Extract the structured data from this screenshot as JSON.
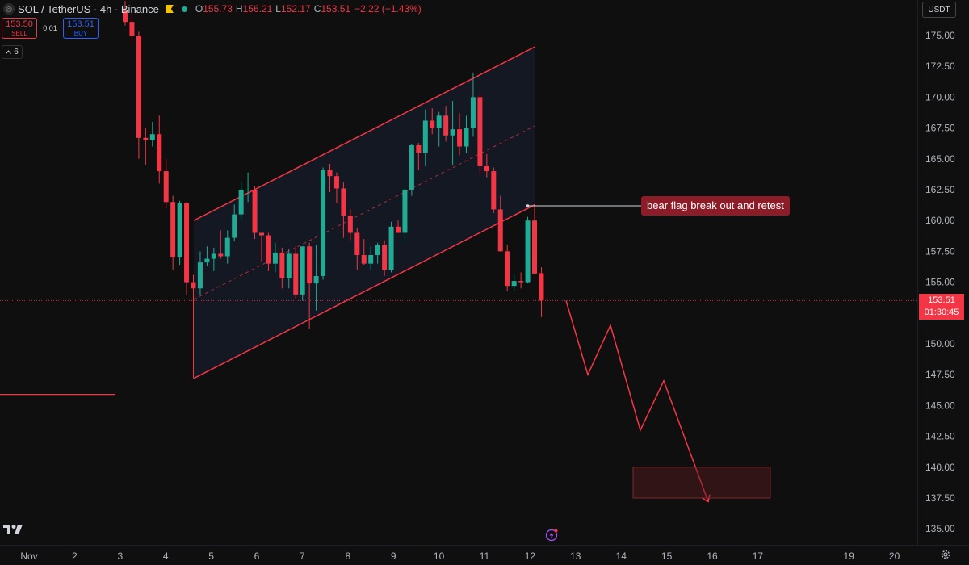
{
  "header": {
    "symbol_title": "SOL / TetherUS · 4h · Binance",
    "ohlc": [
      {
        "key": "O",
        "value": "155.73"
      },
      {
        "key": "H",
        "value": "156.21"
      },
      {
        "key": "L",
        "value": "152.17"
      },
      {
        "key": "C",
        "value": "153.51"
      }
    ],
    "change": "−2.22 (−1.43%)"
  },
  "trade": {
    "sell_price": "153.50",
    "sell_label": "SELL",
    "spread": "0.01",
    "buy_price": "153.51",
    "buy_label": "BUY"
  },
  "indicator_count": "6",
  "currency_button": "USDT",
  "current_price": {
    "value": "153.51",
    "countdown": "01:30:45"
  },
  "annotation": "bear flag break out and retest",
  "colors": {
    "up": "#22ab94",
    "down": "#f23645",
    "background": "#0f0f0f",
    "drawing": "#f23645"
  },
  "icons": [
    "tradingview-logo-icon",
    "settings-gear-icon",
    "lightning-bolt-icon",
    "chevron-down-icon",
    "symbol-logo-icon"
  ],
  "chart_data": {
    "type": "candlestick",
    "interval": "4h",
    "y_ticks": [
      135.0,
      137.5,
      140.0,
      142.5,
      145.0,
      147.5,
      150.0,
      152.5,
      155.0,
      157.5,
      160.0,
      162.5,
      165.0,
      167.5,
      170.0,
      172.5,
      175.0
    ],
    "y_tick_labels": [
      "135.00",
      "137.50",
      "140.00",
      "142.50",
      "145.00",
      "147.50",
      "150.00",
      "152.50",
      "155.00",
      "157.50",
      "160.00",
      "162.50",
      "165.00",
      "167.50",
      "170.00",
      "172.50",
      "175.00"
    ],
    "x_tick_labels": [
      "Nov",
      "2",
      "3",
      "4",
      "5",
      "6",
      "7",
      "8",
      "9",
      "10",
      "11",
      "12",
      "13",
      "14",
      "15",
      "16",
      "17",
      "19",
      "20"
    ],
    "candles": [
      [
        177.0,
        177.8,
        175.8,
        176.1
      ],
      [
        176.1,
        176.8,
        174.4,
        175.0
      ],
      [
        175.0,
        175.3,
        165.0,
        166.7
      ],
      [
        166.7,
        167.5,
        164.5,
        166.5
      ],
      [
        166.5,
        168.0,
        166.0,
        167.0
      ],
      [
        167.0,
        168.5,
        163.0,
        164.0
      ],
      [
        164.0,
        165.0,
        161.0,
        161.5
      ],
      [
        161.5,
        162.0,
        156.0,
        157.0
      ],
      [
        157.0,
        161.6,
        156.4,
        161.4
      ],
      [
        161.4,
        161.5,
        154.0,
        155.0
      ],
      [
        155.0,
        155.6,
        147.2,
        154.5
      ],
      [
        154.5,
        157.5,
        154.0,
        156.6
      ],
      [
        156.6,
        157.9,
        156.3,
        156.9
      ],
      [
        156.9,
        157.8,
        155.9,
        157.3
      ],
      [
        157.3,
        159.2,
        156.9,
        157.1
      ],
      [
        157.1,
        159.2,
        156.5,
        158.6
      ],
      [
        158.6,
        161.3,
        158.3,
        160.5
      ],
      [
        160.5,
        163.1,
        160.0,
        162.5
      ],
      [
        162.5,
        163.9,
        161.5,
        162.5
      ],
      [
        162.5,
        162.8,
        158.5,
        159.0
      ],
      [
        159.0,
        159.0,
        156.7,
        158.8
      ],
      [
        158.8,
        159.0,
        155.9,
        156.5
      ],
      [
        156.5,
        158.2,
        155.8,
        157.4
      ],
      [
        157.4,
        157.8,
        154.5,
        155.3
      ],
      [
        155.3,
        157.7,
        154.5,
        157.3
      ],
      [
        157.3,
        157.9,
        153.6,
        154.0
      ],
      [
        154.0,
        157.9,
        153.5,
        157.9
      ],
      [
        157.9,
        158.2,
        151.2,
        154.9
      ],
      [
        154.9,
        158.0,
        152.7,
        155.5
      ],
      [
        155.5,
        164.3,
        155.2,
        164.1
      ],
      [
        164.1,
        164.6,
        162.3,
        163.6
      ],
      [
        163.6,
        163.9,
        161.4,
        162.6
      ],
      [
        162.6,
        163.1,
        158.6,
        160.4
      ],
      [
        160.4,
        160.9,
        158.4,
        159.0
      ],
      [
        159.0,
        159.4,
        156.0,
        157.2
      ],
      [
        157.2,
        158.5,
        156.4,
        156.5
      ],
      [
        156.5,
        157.9,
        156.0,
        157.2
      ],
      [
        157.2,
        158.2,
        156.5,
        158.0
      ],
      [
        158.0,
        158.4,
        155.5,
        156.0
      ],
      [
        156.0,
        159.9,
        155.8,
        159.5
      ],
      [
        159.5,
        160.0,
        159.0,
        159.0
      ],
      [
        159.0,
        162.8,
        158.2,
        162.5
      ],
      [
        162.5,
        166.2,
        162.0,
        166.1
      ],
      [
        166.1,
        166.3,
        164.1,
        165.5
      ],
      [
        165.5,
        169.0,
        164.4,
        168.1
      ],
      [
        168.1,
        169.1,
        167.0,
        167.5
      ],
      [
        167.5,
        168.8,
        166.0,
        168.5
      ],
      [
        168.5,
        169.3,
        166.4,
        166.9
      ],
      [
        166.9,
        169.7,
        164.5,
        167.4
      ],
      [
        167.4,
        168.7,
        165.3,
        166.0
      ],
      [
        166.0,
        168.5,
        165.5,
        167.5
      ],
      [
        167.5,
        172.0,
        166.8,
        170.0
      ],
      [
        170.0,
        170.3,
        163.8,
        164.4
      ],
      [
        164.4,
        165.4,
        163.5,
        164.0
      ],
      [
        164.0,
        164.3,
        160.6,
        160.9
      ],
      [
        160.9,
        162.0,
        157.5,
        157.5
      ],
      [
        157.5,
        158.0,
        154.3,
        154.7
      ],
      [
        154.7,
        155.6,
        154.3,
        155.1
      ],
      [
        155.1,
        155.8,
        154.5,
        155.0
      ],
      [
        155.0,
        160.3,
        154.9,
        160.0
      ],
      [
        160.0,
        161.2,
        155.6,
        155.7
      ],
      [
        155.73,
        156.21,
        152.17,
        153.51
      ]
    ],
    "channel": {
      "upper": [
        [
          160.0,
          169.5
        ],
        [
          174.1,
          169.5
        ]
      ],
      "lower": [
        [
          147.2,
          169.5
        ],
        [
          161.3,
          169.5
        ]
      ]
    },
    "projection": [
      153.5,
      147.5,
      151.5,
      143.0,
      147.0,
      137.2
    ],
    "target_zone": [
      137.5,
      140.0
    ],
    "horizontal_level": 145.9
  }
}
